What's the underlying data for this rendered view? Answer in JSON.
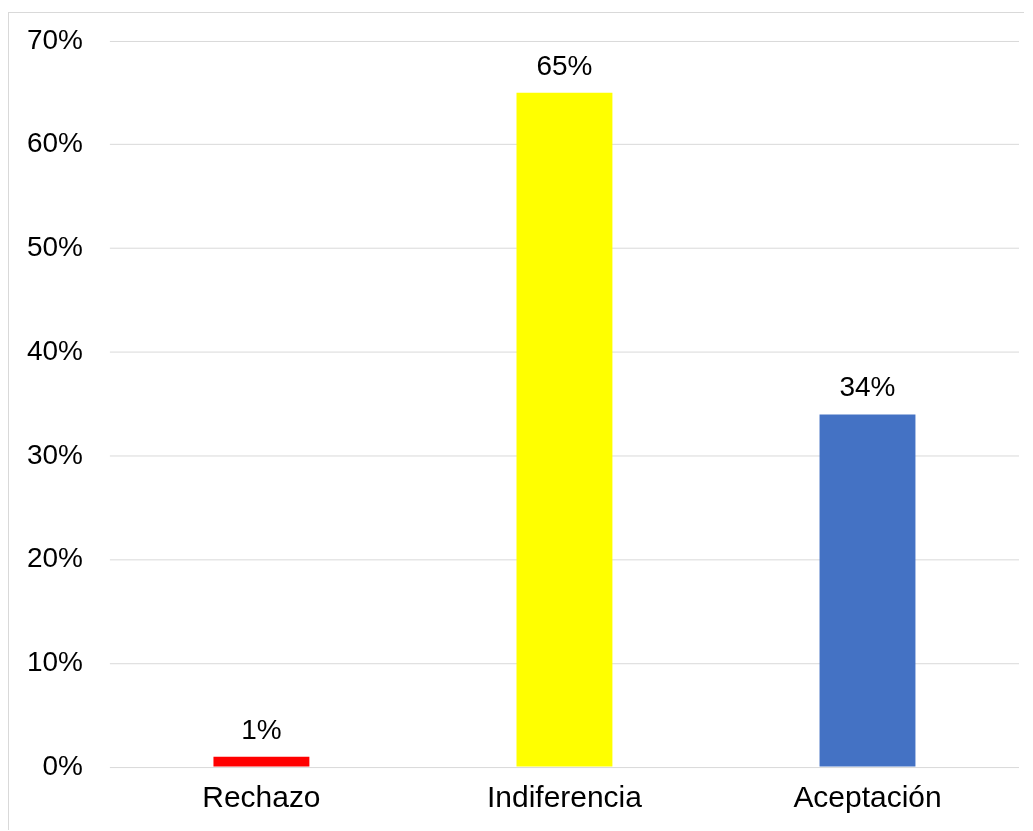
{
  "chart_data": {
    "type": "bar",
    "categories": [
      "Rechazo",
      "Indiferencia",
      "Aceptación"
    ],
    "values": [
      1,
      65,
      34
    ],
    "colors": [
      "#ff0000",
      "#ffff00",
      "#4472c4"
    ],
    "value_labels": [
      "1%",
      "65%",
      "34%"
    ],
    "ylim": [
      0,
      70
    ],
    "yticks": [
      {
        "value": 0,
        "label": "0%"
      },
      {
        "value": 10,
        "label": "10%"
      },
      {
        "value": 20,
        "label": "20%"
      },
      {
        "value": 30,
        "label": "30%"
      },
      {
        "value": 40,
        "label": "40%"
      },
      {
        "value": 50,
        "label": "50%"
      },
      {
        "value": 60,
        "label": "60%"
      },
      {
        "value": 70,
        "label": "70%"
      }
    ],
    "grid": "y"
  }
}
